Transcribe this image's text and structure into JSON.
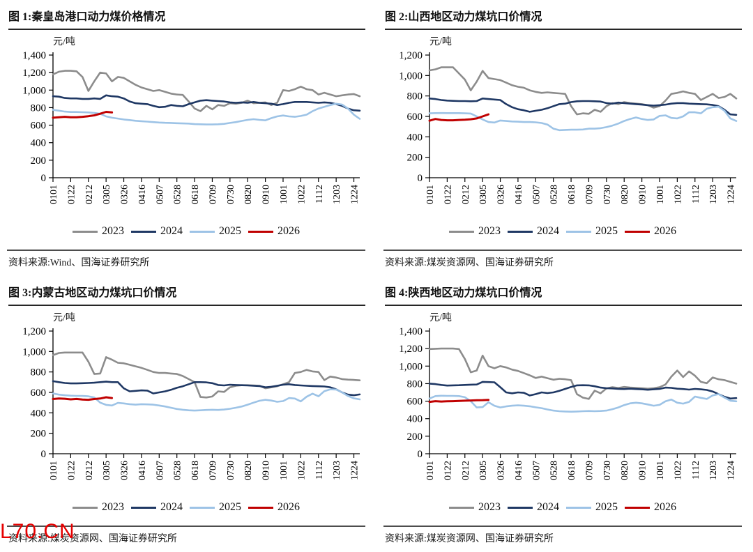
{
  "page": {
    "watermark": {
      "text": "L70.CN",
      "color": "#e60000"
    }
  },
  "legend_years": [
    "2023",
    "2024",
    "2025",
    "2026"
  ],
  "series_colors": {
    "2023": "#8c8c8c",
    "2024": "#1f3864",
    "2025": "#9dc3e6",
    "2026": "#c00000"
  },
  "chart_data": [
    {
      "type": "line",
      "title": "图 1:秦皇岛港口动力煤价格情况",
      "unit": "元/吨",
      "source": "资料来源:Wind、国海证券研究所",
      "xlabel": "",
      "ylabel": "元/吨",
      "ylim": [
        0,
        1400
      ],
      "ytick_step": 200,
      "grid": false,
      "legend_position": "bottom",
      "categories": [
        "0101",
        "0122",
        "0212",
        "0305",
        "0326",
        "0416",
        "0507",
        "0528",
        "0618",
        "0709",
        "0730",
        "0820",
        "0910",
        "1001",
        "1022",
        "1112",
        "1203",
        "1224"
      ],
      "label_every_weeks": 3,
      "series": [
        {
          "name": "2023",
          "color": "#8c8c8c",
          "values": [
            1180,
            1210,
            1220,
            1220,
            1215,
            1150,
            990,
            1100,
            1200,
            1190,
            1100,
            1150,
            1140,
            1100,
            1060,
            1030,
            1010,
            990,
            1000,
            980,
            960,
            950,
            945,
            870,
            790,
            760,
            820,
            780,
            830,
            820,
            850,
            845,
            855,
            880,
            850,
            855,
            860,
            830,
            855,
            1000,
            990,
            1010,
            1040,
            1010,
            1000,
            950,
            970,
            950,
            930,
            940,
            950,
            955,
            930
          ]
        },
        {
          "name": "2024",
          "color": "#1f3864",
          "values": [
            930,
            925,
            910,
            905,
            905,
            900,
            900,
            905,
            900,
            940,
            930,
            925,
            905,
            870,
            850,
            845,
            840,
            820,
            805,
            810,
            830,
            820,
            815,
            840,
            860,
            880,
            885,
            880,
            875,
            870,
            860,
            855,
            860,
            855,
            865,
            855,
            850,
            845,
            830,
            840,
            855,
            865,
            865,
            865,
            860,
            855,
            860,
            855,
            840,
            820,
            790,
            770,
            765
          ]
        },
        {
          "name": "2025",
          "color": "#9dc3e6",
          "values": [
            775,
            765,
            755,
            750,
            750,
            748,
            745,
            740,
            730,
            700,
            685,
            675,
            665,
            658,
            650,
            645,
            640,
            635,
            630,
            627,
            625,
            622,
            620,
            618,
            612,
            610,
            608,
            608,
            610,
            615,
            625,
            635,
            648,
            660,
            668,
            660,
            655,
            680,
            700,
            710,
            700,
            695,
            705,
            720,
            760,
            790,
            810,
            830,
            845,
            835,
            790,
            720,
            672
          ]
        },
        {
          "name": "2026",
          "color": "#c00000",
          "values": [
            685,
            690,
            695,
            690,
            690,
            695,
            702,
            712,
            730,
            752,
            745
          ]
        }
      ]
    },
    {
      "type": "line",
      "title": "图 2:山西地区动力煤坑口价情况",
      "unit": "元/吨",
      "source": "资料来源:煤炭资源网、国海证券研究所",
      "xlabel": "",
      "ylabel": "元/吨",
      "ylim": [
        0,
        1200
      ],
      "ytick_step": 200,
      "grid": false,
      "legend_position": "bottom",
      "categories": [
        "0101",
        "0122",
        "0212",
        "0305",
        "0326",
        "0416",
        "0507",
        "0528",
        "0618",
        "0709",
        "0730",
        "0820",
        "0910",
        "1001",
        "1022",
        "1112",
        "1203",
        "1224"
      ],
      "label_every_weeks": 3,
      "series": [
        {
          "name": "2023",
          "color": "#8c8c8c",
          "values": [
            1050,
            1060,
            1080,
            1080,
            1080,
            1020,
            960,
            855,
            940,
            1045,
            975,
            965,
            955,
            930,
            905,
            890,
            880,
            855,
            840,
            830,
            835,
            830,
            825,
            820,
            700,
            620,
            630,
            625,
            665,
            645,
            700,
            730,
            720,
            740,
            730,
            725,
            720,
            710,
            685,
            700,
            755,
            820,
            830,
            845,
            830,
            820,
            760,
            790,
            820,
            780,
            790,
            820,
            775
          ]
        },
        {
          "name": "2024",
          "color": "#1f3864",
          "values": [
            775,
            770,
            760,
            755,
            752,
            750,
            750,
            748,
            750,
            775,
            770,
            765,
            760,
            720,
            690,
            670,
            660,
            645,
            655,
            665,
            680,
            700,
            720,
            725,
            740,
            748,
            750,
            750,
            748,
            745,
            730,
            725,
            735,
            730,
            725,
            720,
            715,
            710,
            705,
            710,
            715,
            725,
            730,
            730,
            725,
            722,
            720,
            718,
            712,
            700,
            665,
            620,
            615
          ]
        },
        {
          "name": "2025",
          "color": "#9dc3e6",
          "values": [
            630,
            632,
            633,
            632,
            632,
            632,
            630,
            628,
            600,
            570,
            545,
            540,
            560,
            555,
            550,
            548,
            545,
            545,
            542,
            535,
            520,
            480,
            465,
            468,
            470,
            470,
            472,
            480,
            480,
            485,
            495,
            510,
            530,
            555,
            575,
            590,
            575,
            565,
            570,
            605,
            610,
            585,
            580,
            600,
            640,
            640,
            630,
            675,
            690,
            695,
            655,
            580,
            555
          ]
        },
        {
          "name": "2026",
          "color": "#c00000",
          "values": [
            558,
            575,
            565,
            562,
            562,
            565,
            568,
            572,
            580,
            600,
            620
          ]
        }
      ]
    },
    {
      "type": "line",
      "title": "图 3:内蒙古地区动力煤坑口价情况",
      "unit": "元/吨",
      "source": "资料来源:煤炭资源网、国海证券研究所",
      "xlabel": "",
      "ylabel": "元/吨",
      "ylim": [
        0,
        1200
      ],
      "ytick_step": 200,
      "grid": false,
      "legend_position": "bottom",
      "categories": [
        "0101",
        "0122",
        "0212",
        "0305",
        "0326",
        "0416",
        "0507",
        "0528",
        "0618",
        "0709",
        "0730",
        "0820",
        "0910",
        "1001",
        "1022",
        "1112",
        "1203",
        "1224"
      ],
      "label_every_weeks": 3,
      "series": [
        {
          "name": "2023",
          "color": "#8c8c8c",
          "values": [
            965,
            985,
            990,
            990,
            990,
            990,
            900,
            780,
            785,
            945,
            920,
            890,
            885,
            870,
            855,
            840,
            820,
            800,
            790,
            790,
            785,
            780,
            760,
            730,
            700,
            555,
            550,
            560,
            610,
            605,
            650,
            665,
            670,
            670,
            668,
            665,
            640,
            650,
            660,
            680,
            700,
            790,
            800,
            820,
            805,
            800,
            720,
            755,
            745,
            730,
            725,
            722,
            718
          ]
        },
        {
          "name": "2024",
          "color": "#1f3864",
          "values": [
            710,
            700,
            692,
            688,
            688,
            690,
            692,
            695,
            700,
            705,
            700,
            700,
            640,
            610,
            615,
            620,
            618,
            590,
            600,
            610,
            625,
            645,
            660,
            680,
            700,
            700,
            698,
            690,
            672,
            668,
            675,
            672,
            670,
            668,
            665,
            662,
            650,
            655,
            665,
            675,
            680,
            672,
            668,
            665,
            662,
            660,
            658,
            650,
            630,
            600,
            578,
            572,
            580
          ]
        },
        {
          "name": "2025",
          "color": "#9dc3e6",
          "values": [
            590,
            578,
            572,
            568,
            566,
            565,
            562,
            550,
            500,
            478,
            472,
            498,
            492,
            485,
            480,
            485,
            483,
            480,
            472,
            462,
            450,
            438,
            430,
            425,
            422,
            425,
            428,
            430,
            428,
            432,
            440,
            450,
            462,
            480,
            500,
            518,
            528,
            520,
            508,
            515,
            545,
            540,
            512,
            558,
            588,
            562,
            612,
            630,
            628,
            600,
            565,
            542,
            532
          ]
        },
        {
          "name": "2026",
          "color": "#c00000",
          "values": [
            535,
            540,
            538,
            532,
            536,
            530,
            528,
            535,
            540,
            552,
            545
          ]
        }
      ]
    },
    {
      "type": "line",
      "title": "图 4:陕西地区动力煤坑口价情况",
      "unit": "元/吨",
      "source": "资料来源:煤炭资源网、国海证券研究所",
      "xlabel": "",
      "ylabel": "元/吨",
      "ylim": [
        0,
        1400
      ],
      "ytick_step": 200,
      "grid": false,
      "legend_position": "bottom",
      "categories": [
        "0101",
        "0122",
        "0212",
        "0305",
        "0326",
        "0416",
        "0507",
        "0528",
        "0618",
        "0709",
        "0730",
        "0820",
        "0910",
        "1001",
        "1022",
        "1112",
        "1203",
        "1224"
      ],
      "label_every_weeks": 3,
      "series": [
        {
          "name": "2023",
          "color": "#8c8c8c",
          "values": [
            1195,
            1198,
            1200,
            1200,
            1200,
            1195,
            1080,
            930,
            950,
            1120,
            1000,
            975,
            1000,
            985,
            960,
            945,
            920,
            895,
            865,
            880,
            862,
            845,
            855,
            850,
            840,
            680,
            640,
            625,
            720,
            690,
            745,
            760,
            750,
            762,
            755,
            752,
            748,
            742,
            748,
            760,
            790,
            880,
            950,
            875,
            940,
            890,
            820,
            805,
            870,
            850,
            840,
            820,
            800
          ]
        },
        {
          "name": "2024",
          "color": "#1f3864",
          "values": [
            800,
            795,
            785,
            778,
            780,
            782,
            785,
            788,
            790,
            820,
            818,
            815,
            760,
            700,
            690,
            700,
            695,
            665,
            680,
            700,
            692,
            700,
            718,
            740,
            762,
            780,
            782,
            780,
            770,
            755,
            748,
            745,
            740,
            738,
            742,
            738,
            735,
            730,
            735,
            740,
            755,
            752,
            742,
            738,
            732,
            740,
            735,
            728,
            710,
            680,
            650,
            630,
            635
          ]
        },
        {
          "name": "2025",
          "color": "#9dc3e6",
          "values": [
            630,
            658,
            662,
            660,
            660,
            658,
            645,
            600,
            528,
            532,
            588,
            548,
            528,
            540,
            548,
            552,
            548,
            542,
            530,
            520,
            505,
            492,
            485,
            482,
            480,
            482,
            485,
            488,
            485,
            488,
            492,
            508,
            528,
            555,
            575,
            582,
            575,
            562,
            548,
            558,
            598,
            618,
            582,
            572,
            592,
            652,
            638,
            625,
            665,
            680,
            640,
            605,
            598
          ]
        },
        {
          "name": "2026",
          "color": "#c00000",
          "values": [
            592,
            600,
            596,
            598,
            600,
            602,
            605,
            608,
            610,
            612,
            615
          ]
        }
      ]
    }
  ]
}
